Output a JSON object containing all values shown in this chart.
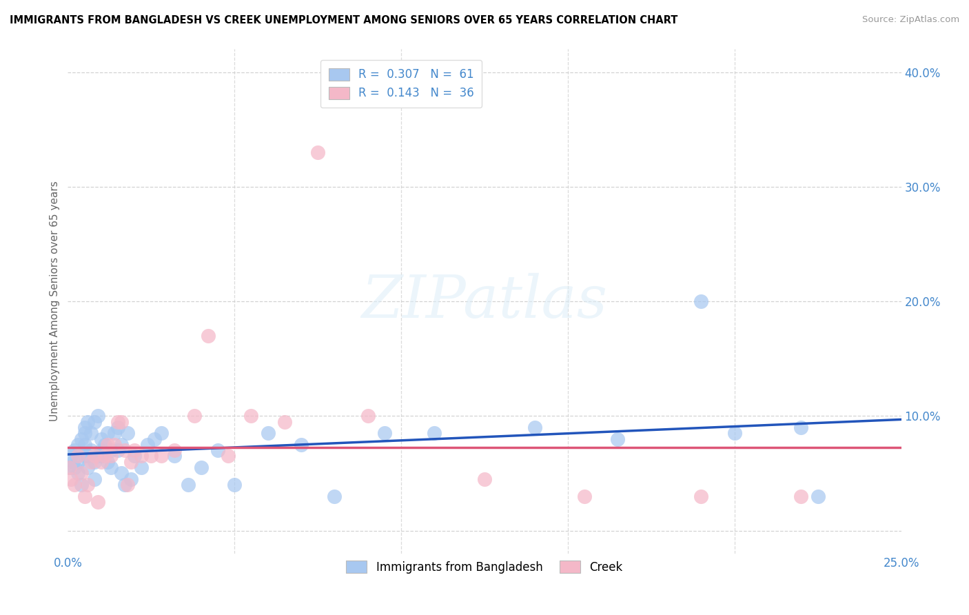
{
  "title": "IMMIGRANTS FROM BANGLADESH VS CREEK UNEMPLOYMENT AMONG SENIORS OVER 65 YEARS CORRELATION CHART",
  "source": "Source: ZipAtlas.com",
  "ylabel": "Unemployment Among Seniors over 65 years",
  "xlim": [
    0.0,
    0.25
  ],
  "ylim": [
    -0.02,
    0.42
  ],
  "blue_color": "#a8c8f0",
  "pink_color": "#f4b8c8",
  "line_blue": "#2255bb",
  "line_pink": "#dd5577",
  "text_color": "#4488cc",
  "watermark_color": "#ddeef8",
  "bd_x": [
    0.0005,
    0.001,
    0.0015,
    0.002,
    0.002,
    0.003,
    0.003,
    0.003,
    0.004,
    0.004,
    0.005,
    0.005,
    0.005,
    0.005,
    0.006,
    0.006,
    0.006,
    0.007,
    0.007,
    0.008,
    0.008,
    0.008,
    0.009,
    0.009,
    0.01,
    0.01,
    0.01,
    0.011,
    0.012,
    0.012,
    0.013,
    0.013,
    0.014,
    0.015,
    0.015,
    0.016,
    0.016,
    0.017,
    0.018,
    0.019,
    0.02,
    0.022,
    0.024,
    0.026,
    0.028,
    0.032,
    0.036,
    0.04,
    0.045,
    0.05,
    0.06,
    0.07,
    0.08,
    0.095,
    0.11,
    0.14,
    0.165,
    0.19,
    0.2,
    0.22,
    0.225
  ],
  "bd_y": [
    0.055,
    0.065,
    0.06,
    0.07,
    0.055,
    0.075,
    0.06,
    0.05,
    0.08,
    0.04,
    0.085,
    0.075,
    0.065,
    0.09,
    0.095,
    0.065,
    0.055,
    0.085,
    0.07,
    0.095,
    0.06,
    0.045,
    0.1,
    0.065,
    0.08,
    0.07,
    0.065,
    0.075,
    0.085,
    0.06,
    0.07,
    0.055,
    0.085,
    0.09,
    0.07,
    0.075,
    0.05,
    0.04,
    0.085,
    0.045,
    0.065,
    0.055,
    0.075,
    0.08,
    0.085,
    0.065,
    0.04,
    0.055,
    0.07,
    0.04,
    0.085,
    0.075,
    0.03,
    0.085,
    0.085,
    0.09,
    0.08,
    0.2,
    0.085,
    0.09,
    0.03
  ],
  "cr_x": [
    0.0005,
    0.001,
    0.002,
    0.003,
    0.004,
    0.005,
    0.006,
    0.007,
    0.008,
    0.009,
    0.01,
    0.011,
    0.012,
    0.013,
    0.014,
    0.015,
    0.016,
    0.017,
    0.018,
    0.019,
    0.02,
    0.022,
    0.025,
    0.028,
    0.032,
    0.038,
    0.042,
    0.048,
    0.055,
    0.065,
    0.075,
    0.09,
    0.125,
    0.155,
    0.19,
    0.22
  ],
  "cr_y": [
    0.055,
    0.045,
    0.04,
    0.065,
    0.05,
    0.03,
    0.04,
    0.06,
    0.065,
    0.025,
    0.06,
    0.065,
    0.075,
    0.065,
    0.075,
    0.095,
    0.095,
    0.07,
    0.04,
    0.06,
    0.07,
    0.065,
    0.065,
    0.065,
    0.07,
    0.1,
    0.17,
    0.065,
    0.1,
    0.095,
    0.33,
    0.1,
    0.045,
    0.03,
    0.03,
    0.03
  ]
}
